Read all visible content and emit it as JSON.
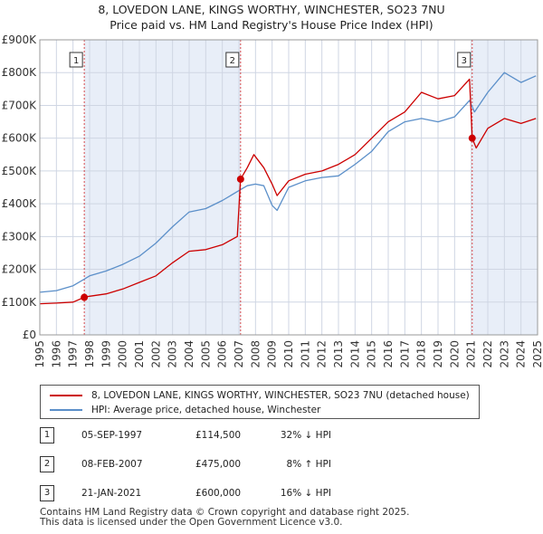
{
  "title_line1": "8, LOVEDON LANE, KINGS WORTHY, WINCHESTER, SO23 7NU",
  "title_line2": "Price paid vs. HM Land Registry's House Price Index (HPI)",
  "colors": {
    "price_line": "#cc0000",
    "hpi_line": "#5b8fc9",
    "shade": "#e8eef8",
    "sale_marker": "#cc0000"
  },
  "chart_data": {
    "type": "line",
    "title": "8, LOVEDON LANE, KINGS WORTHY, WINCHESTER, SO23 7NU — Price paid vs. HM Land Registry's House Price Index (HPI)",
    "xlim": [
      1995,
      2025
    ],
    "ylim": [
      0,
      900000
    ],
    "y_ticks": [
      0,
      100000,
      200000,
      300000,
      400000,
      500000,
      600000,
      700000,
      800000,
      900000
    ],
    "y_tick_labels": [
      "£0",
      "£100K",
      "£200K",
      "£300K",
      "£400K",
      "£500K",
      "£600K",
      "£700K",
      "£800K",
      "£900K"
    ],
    "x_ticks": [
      1995,
      1996,
      1997,
      1998,
      1999,
      2000,
      2001,
      2002,
      2003,
      2004,
      2005,
      2006,
      2007,
      2008,
      2009,
      2010,
      2011,
      2012,
      2013,
      2014,
      2015,
      2016,
      2017,
      2018,
      2019,
      2020,
      2021,
      2022,
      2023,
      2024,
      2025
    ],
    "x_tick_labels": [
      "1995",
      "1996",
      "1997",
      "1998",
      "1999",
      "2000",
      "2001",
      "2002",
      "2003",
      "2004",
      "2005",
      "2006",
      "2007",
      "2008",
      "2009",
      "2010",
      "2011",
      "2012",
      "2013",
      "2014",
      "2015",
      "2016",
      "2017",
      "2018",
      "2019",
      "2020",
      "2021",
      "2022",
      "2023",
      "2024",
      "2025"
    ],
    "series": [
      {
        "name": "8, LOVEDON LANE, KINGS WORTHY, WINCHESTER, SO23 7NU (detached house)",
        "color": "#cc0000",
        "x": [
          1995.0,
          1996.0,
          1997.0,
          1997.68,
          1998.0,
          1999.0,
          2000.0,
          2001.0,
          2002.0,
          2003.0,
          2004.0,
          2005.0,
          2006.0,
          2006.9,
          2007.1,
          2007.5,
          2007.9,
          2008.5,
          2009.0,
          2009.3,
          2010.0,
          2011.0,
          2012.0,
          2013.0,
          2014.0,
          2015.0,
          2016.0,
          2017.0,
          2018.0,
          2019.0,
          2020.0,
          2020.9,
          2021.06,
          2021.3,
          2022.0,
          2023.0,
          2024.0,
          2024.9
        ],
        "y": [
          95000,
          97000,
          100000,
          114500,
          118000,
          125000,
          140000,
          160000,
          180000,
          220000,
          255000,
          260000,
          275000,
          300000,
          475000,
          510000,
          550000,
          510000,
          460000,
          425000,
          470000,
          490000,
          500000,
          520000,
          550000,
          600000,
          650000,
          680000,
          740000,
          720000,
          730000,
          780000,
          600000,
          570000,
          630000,
          660000,
          645000,
          660000
        ]
      },
      {
        "name": "HPI: Average price, detached house, Winchester",
        "color": "#5b8fc9",
        "x": [
          1995.0,
          1996.0,
          1997.0,
          1997.68,
          1998.0,
          1999.0,
          2000.0,
          2001.0,
          2002.0,
          2003.0,
          2004.0,
          2005.0,
          2006.0,
          2007.0,
          2007.5,
          2008.0,
          2008.5,
          2009.0,
          2009.3,
          2010.0,
          2011.0,
          2012.0,
          2013.0,
          2014.0,
          2015.0,
          2016.0,
          2017.0,
          2018.0,
          2019.0,
          2020.0,
          2020.9,
          2021.2,
          2022.0,
          2023.0,
          2024.0,
          2024.9
        ],
        "y": [
          130000,
          135000,
          150000,
          170000,
          180000,
          195000,
          215000,
          240000,
          280000,
          330000,
          375000,
          385000,
          410000,
          440000,
          455000,
          460000,
          455000,
          395000,
          380000,
          450000,
          470000,
          480000,
          485000,
          520000,
          560000,
          620000,
          650000,
          660000,
          650000,
          665000,
          715000,
          680000,
          740000,
          800000,
          770000,
          790000
        ]
      }
    ],
    "sales": [
      {
        "num": "1",
        "date": "05-SEP-1997",
        "price": "£114,500",
        "hpi": "32% ↓ HPI",
        "x": 1997.68,
        "y": 114500
      },
      {
        "num": "2",
        "date": "08-FEB-2007",
        "price": "£475,000",
        "hpi": "8% ↑ HPI",
        "x": 2007.1,
        "y": 475000
      },
      {
        "num": "3",
        "date": "21-JAN-2021",
        "price": "£600,000",
        "hpi": "16% ↓ HPI",
        "x": 2021.06,
        "y": 600000
      }
    ]
  },
  "legend": {
    "price_label": "8, LOVEDON LANE, KINGS WORTHY, WINCHESTER, SO23 7NU (detached house)",
    "hpi_label": "HPI: Average price, detached house, Winchester"
  },
  "footer_line1": "Contains HM Land Registry data © Crown copyright and database right 2025.",
  "footer_line2": "This data is licensed under the Open Government Licence v3.0."
}
